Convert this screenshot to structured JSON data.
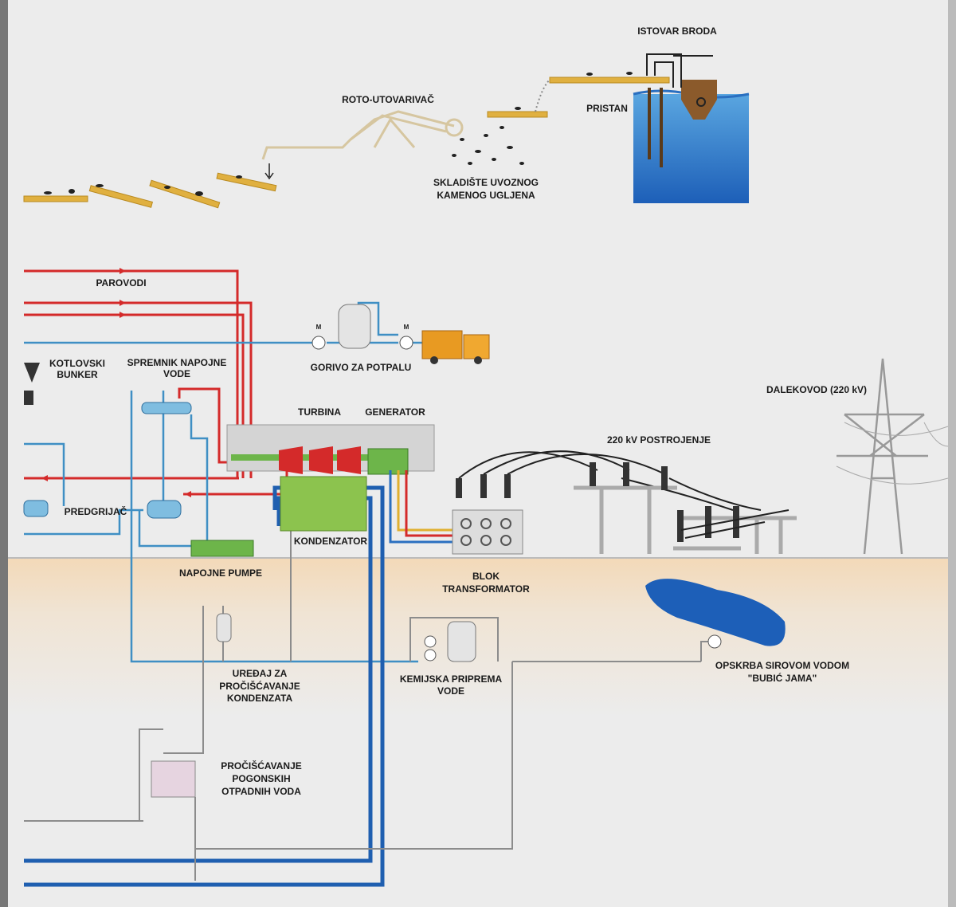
{
  "labels": [
    {
      "lines": [
        "ISTOVAR BRODA"
      ]
    },
    {
      "lines": [
        "ROTO-UTOVARIVAČ"
      ]
    },
    {
      "lines": [
        "PRISTAN"
      ]
    },
    {
      "lines": [
        "SKLADIŠTE UVOZNOG",
        "KAMENOG UGLJENA"
      ]
    },
    {
      "lines": [
        "PAROVODI"
      ]
    },
    {
      "lines": [
        "KOTLOVSKI",
        "BUNKER"
      ]
    },
    {
      "lines": [
        "SPREMNIK NAPOJNE",
        "VODE"
      ]
    },
    {
      "lines": [
        "GORIVO ZA POTPALU"
      ]
    },
    {
      "lines": [
        "TURBINA"
      ]
    },
    {
      "lines": [
        "GENERATOR"
      ]
    },
    {
      "lines": [
        "DALEKOVOD (220 kV)"
      ]
    },
    {
      "lines": [
        "220 kV POSTROJENJE"
      ]
    },
    {
      "lines": [
        "PREDGRIJAČ"
      ]
    },
    {
      "lines": [
        "KONDENZATOR"
      ]
    },
    {
      "lines": [
        "NAPOJNE PUMPE"
      ]
    },
    {
      "lines": [
        "BLOK",
        "TRANSFORMATOR"
      ]
    },
    {
      "lines": [
        "UREĐAJ ZA",
        "PROČIŠĆAVANJE",
        "KONDENZATA"
      ]
    },
    {
      "lines": [
        "KEMIJSKA PRIPREMA",
        "VODE"
      ]
    },
    {
      "lines": [
        "OPSKRBA SIROVOM VODOM",
        "\"BUBIĆ JAMA\""
      ]
    },
    {
      "lines": [
        "PROČIŠĆAVANJE",
        "POGONSKIH",
        "OTPADNIH VODA"
      ]
    }
  ]
}
